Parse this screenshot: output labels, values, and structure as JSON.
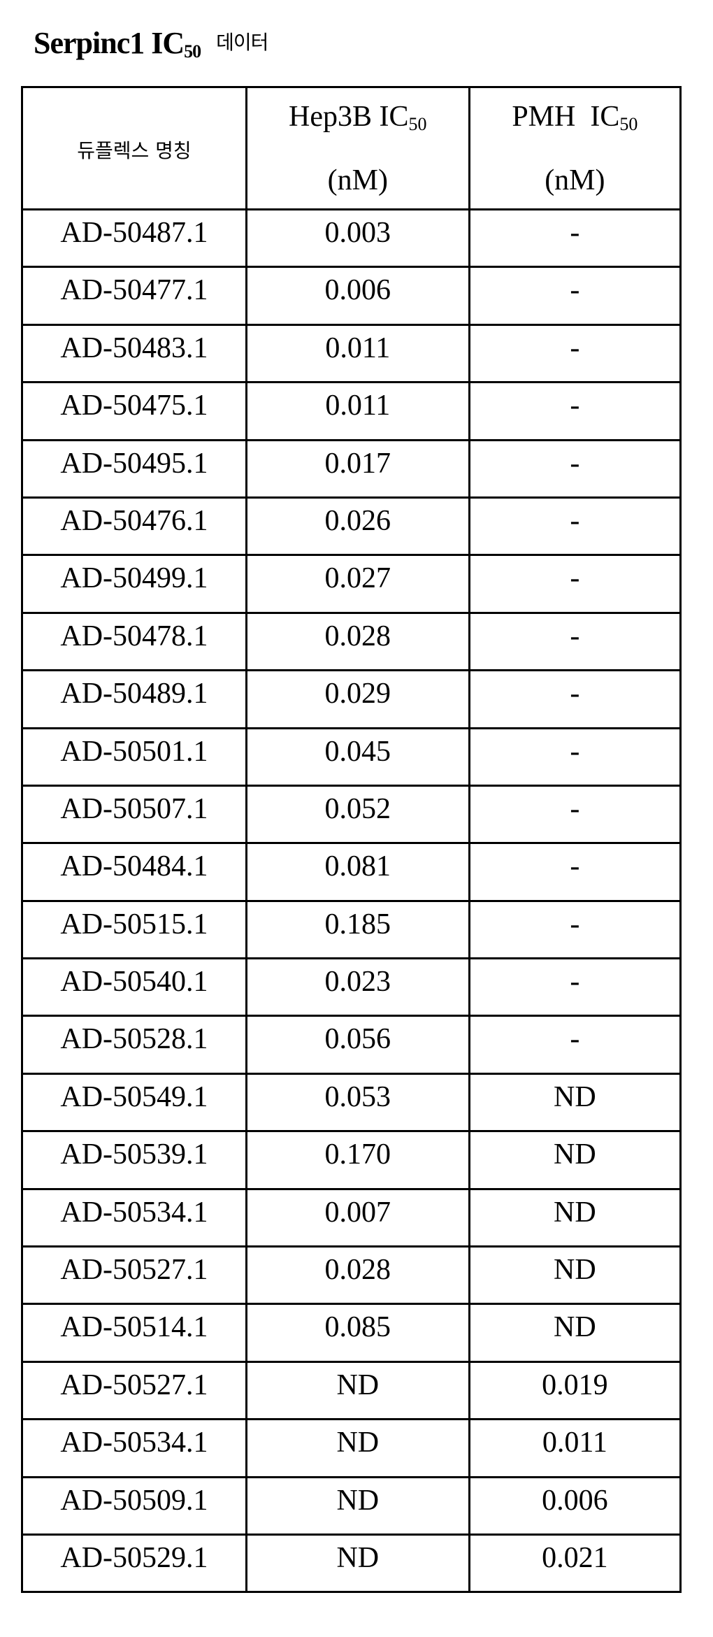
{
  "title": {
    "main": "Serpinc1 IC",
    "sub": "50",
    "suffix": "데이터"
  },
  "table": {
    "headers": [
      {
        "line1": "듀플렉스 명칭"
      },
      {
        "line1": "Hep3B IC",
        "sub": "50",
        "line2": "(nM)"
      },
      {
        "line1": "PMH  IC",
        "sub": "50",
        "line2": "(nM)"
      }
    ],
    "rows": [
      [
        "AD-50487.1",
        "0.003",
        "-"
      ],
      [
        "AD-50477.1",
        "0.006",
        "-"
      ],
      [
        "AD-50483.1",
        "0.011",
        "-"
      ],
      [
        "AD-50475.1",
        "0.011",
        "-"
      ],
      [
        "AD-50495.1",
        "0.017",
        "-"
      ],
      [
        "AD-50476.1",
        "0.026",
        "-"
      ],
      [
        "AD-50499.1",
        "0.027",
        "-"
      ],
      [
        "AD-50478.1",
        "0.028",
        "-"
      ],
      [
        "AD-50489.1",
        "0.029",
        "-"
      ],
      [
        "AD-50501.1",
        "0.045",
        "-"
      ],
      [
        "AD-50507.1",
        "0.052",
        "-"
      ],
      [
        "AD-50484.1",
        "0.081",
        "-"
      ],
      [
        "AD-50515.1",
        "0.185",
        "-"
      ],
      [
        "AD-50540.1",
        "0.023",
        "-"
      ],
      [
        "AD-50528.1",
        "0.056",
        "-"
      ],
      [
        "AD-50549.1",
        "0.053",
        "ND"
      ],
      [
        "AD-50539.1",
        "0.170",
        "ND"
      ],
      [
        "AD-50534.1",
        "0.007",
        "ND"
      ],
      [
        "AD-50527.1",
        "0.028",
        "ND"
      ],
      [
        "AD-50514.1",
        "0.085",
        "ND"
      ],
      [
        "AD-50527.1",
        "ND",
        "0.019"
      ],
      [
        "AD-50534.1",
        "ND",
        "0.011"
      ],
      [
        "AD-50509.1",
        "ND",
        "0.006"
      ],
      [
        "AD-50529.1",
        "ND",
        "0.021"
      ]
    ]
  }
}
